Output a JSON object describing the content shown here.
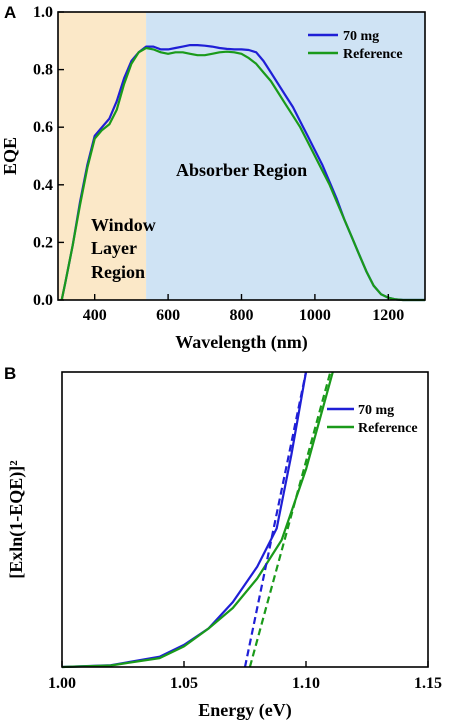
{
  "colors": {
    "series_70mg": "#1f1fd6",
    "series_reference": "#1a9a1a",
    "window_region": "#fbe8c8",
    "absorber_region": "#cfe3f4"
  },
  "chart_data": [
    {
      "panel": "A",
      "type": "line",
      "xlabel": "Wavelength (nm)",
      "ylabel": "EQE",
      "xlim": [
        300,
        1300
      ],
      "ylim": [
        0.0,
        1.0
      ],
      "xticks": [
        400,
        600,
        800,
        1000,
        1200
      ],
      "yticks": [
        0.0,
        0.2,
        0.4,
        0.6,
        0.8,
        1.0
      ],
      "regions": [
        {
          "label_lines": [
            "Window",
            "Layer",
            "Region"
          ],
          "x_range": [
            300,
            540
          ]
        },
        {
          "label_lines": [
            "Absorber Region"
          ],
          "x_range": [
            540,
            1300
          ]
        }
      ],
      "legend_position": "top-right",
      "series": [
        {
          "name": "70 mg",
          "x": [
            310,
            320,
            340,
            360,
            380,
            400,
            420,
            440,
            460,
            480,
            500,
            520,
            540,
            560,
            580,
            600,
            620,
            640,
            660,
            680,
            700,
            720,
            740,
            760,
            780,
            800,
            820,
            840,
            860,
            880,
            900,
            920,
            940,
            960,
            980,
            1000,
            1020,
            1040,
            1060,
            1080,
            1100,
            1120,
            1140,
            1160,
            1180,
            1200,
            1220,
            1240,
            1260,
            1280,
            1300
          ],
          "y": [
            0.0,
            0.06,
            0.19,
            0.34,
            0.47,
            0.57,
            0.6,
            0.63,
            0.69,
            0.77,
            0.83,
            0.86,
            0.88,
            0.88,
            0.87,
            0.87,
            0.875,
            0.88,
            0.885,
            0.885,
            0.883,
            0.88,
            0.875,
            0.872,
            0.87,
            0.87,
            0.868,
            0.86,
            0.83,
            0.79,
            0.75,
            0.71,
            0.67,
            0.62,
            0.57,
            0.52,
            0.47,
            0.41,
            0.35,
            0.28,
            0.22,
            0.16,
            0.1,
            0.05,
            0.02,
            0.008,
            0.002,
            0.0,
            0.0,
            0.0,
            0.0
          ]
        },
        {
          "name": "Reference",
          "x": [
            310,
            320,
            340,
            360,
            380,
            400,
            420,
            440,
            460,
            480,
            500,
            520,
            540,
            560,
            580,
            600,
            620,
            640,
            660,
            680,
            700,
            720,
            740,
            760,
            780,
            800,
            820,
            840,
            860,
            880,
            900,
            920,
            940,
            960,
            980,
            1000,
            1020,
            1040,
            1060,
            1080,
            1100,
            1120,
            1140,
            1160,
            1180,
            1200,
            1220,
            1240,
            1260,
            1280,
            1300
          ],
          "y": [
            0.0,
            0.06,
            0.19,
            0.33,
            0.46,
            0.56,
            0.59,
            0.61,
            0.66,
            0.75,
            0.82,
            0.86,
            0.875,
            0.87,
            0.86,
            0.855,
            0.86,
            0.86,
            0.855,
            0.85,
            0.85,
            0.855,
            0.86,
            0.862,
            0.86,
            0.855,
            0.84,
            0.82,
            0.79,
            0.76,
            0.72,
            0.68,
            0.64,
            0.6,
            0.55,
            0.5,
            0.45,
            0.4,
            0.34,
            0.28,
            0.22,
            0.16,
            0.1,
            0.05,
            0.02,
            0.008,
            0.002,
            0.0,
            0.0,
            0.0,
            0.0
          ]
        }
      ]
    },
    {
      "panel": "B",
      "type": "line",
      "xlabel": "Energy (eV)",
      "ylabel": "[Exln(1-EQE)]²",
      "xlim": [
        1.0,
        1.15
      ],
      "ylim": [
        0,
        100
      ],
      "xticks": [
        1.0,
        1.05,
        1.1,
        1.15
      ],
      "legend_position": "top-right",
      "series": [
        {
          "name": "70 mg",
          "x": [
            1.0,
            1.02,
            1.04,
            1.05,
            1.06,
            1.07,
            1.08,
            1.088,
            1.094,
            1.1
          ],
          "y": [
            0,
            0.6,
            3.5,
            7.5,
            13.0,
            22.0,
            34.0,
            47.0,
            72.0,
            100.0
          ]
        },
        {
          "name": "Reference",
          "x": [
            1.0,
            1.02,
            1.04,
            1.05,
            1.06,
            1.07,
            1.08,
            1.09,
            1.1,
            1.111
          ],
          "y": [
            0,
            0.5,
            3.0,
            7.0,
            13.0,
            20.0,
            30.0,
            43.0,
            67.0,
            100.0
          ]
        },
        {
          "name": "70 mg linear fit",
          "style": "dashed",
          "x": [
            1.075,
            1.1
          ],
          "y": [
            0,
            100
          ]
        },
        {
          "name": "Reference linear fit",
          "style": "dashed",
          "x": [
            1.077,
            1.11
          ],
          "y": [
            0,
            100
          ]
        }
      ]
    }
  ]
}
